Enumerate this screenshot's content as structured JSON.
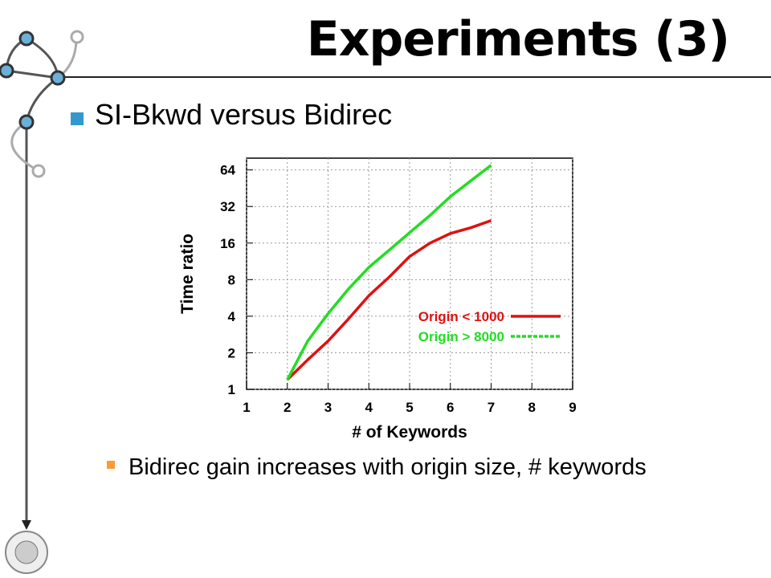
{
  "slide": {
    "title": "Experiments (3)",
    "bullets": [
      "SI-Bkwd versus Bidirec",
      "Bidirec gain increases with origin size, # keywords"
    ]
  },
  "chart_data": {
    "type": "line",
    "x_label": "# of Keywords",
    "y_label": "Time ratio",
    "x": [
      2,
      2.5,
      3,
      3.5,
      4,
      4.5,
      5,
      5.5,
      6,
      6.5,
      7
    ],
    "series": [
      {
        "name": "Origin < 1000",
        "color": "#e01010",
        "values": [
          1.2,
          1.75,
          2.5,
          3.8,
          5.9,
          8.4,
          12.4,
          16,
          19.2,
          21.4,
          24.5
        ]
      },
      {
        "name": "Origin > 8000",
        "color": "#22dd22",
        "values": [
          1.2,
          2.5,
          4.2,
          6.7,
          10.1,
          14,
          19.5,
          27,
          38.6,
          52,
          70
        ]
      }
    ],
    "xlim": [
      1,
      9
    ],
    "xticks": [
      1,
      2,
      3,
      4,
      5,
      6,
      7,
      8,
      9
    ],
    "ylim": [
      1,
      80
    ],
    "yticks": [
      1,
      2,
      4,
      8,
      16,
      32,
      64
    ],
    "log_y": true,
    "grid": true,
    "legend": "right"
  }
}
